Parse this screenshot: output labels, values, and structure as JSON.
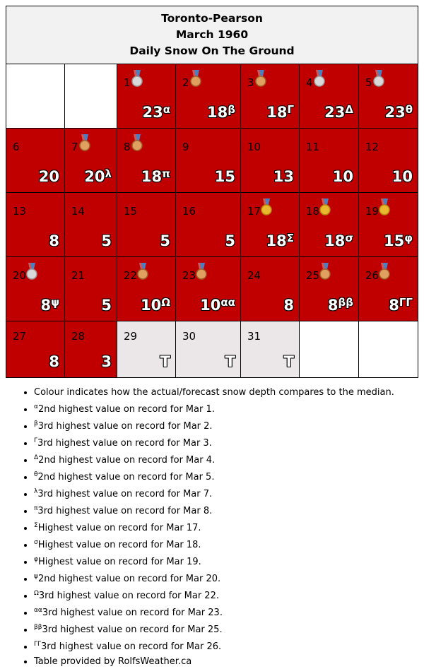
{
  "header": {
    "station": "Toronto-Pearson",
    "period": "March 1960",
    "metric": "Daily Snow On The Ground"
  },
  "colors": {
    "above_median": "#c00000",
    "trace": "#ebe6e8",
    "header_bg": "#f2f2f2"
  },
  "days": [
    {
      "day": "1",
      "value": "23",
      "mark": "α",
      "medal": "silver"
    },
    {
      "day": "2",
      "value": "18",
      "mark": "β",
      "medal": "bronze"
    },
    {
      "day": "3",
      "value": "18",
      "mark": "Γ",
      "medal": "bronze"
    },
    {
      "day": "4",
      "value": "23",
      "mark": "Δ",
      "medal": "silver"
    },
    {
      "day": "5",
      "value": "23",
      "mark": "θ",
      "medal": "silver"
    },
    {
      "day": "6",
      "value": "20",
      "mark": "",
      "medal": ""
    },
    {
      "day": "7",
      "value": "20",
      "mark": "λ",
      "medal": "bronze"
    },
    {
      "day": "8",
      "value": "18",
      "mark": "π",
      "medal": "bronze"
    },
    {
      "day": "9",
      "value": "15",
      "mark": "",
      "medal": ""
    },
    {
      "day": "10",
      "value": "13",
      "mark": "",
      "medal": ""
    },
    {
      "day": "11",
      "value": "10",
      "mark": "",
      "medal": ""
    },
    {
      "day": "12",
      "value": "10",
      "mark": "",
      "medal": ""
    },
    {
      "day": "13",
      "value": "8",
      "mark": "",
      "medal": ""
    },
    {
      "day": "14",
      "value": "5",
      "mark": "",
      "medal": ""
    },
    {
      "day": "15",
      "value": "5",
      "mark": "",
      "medal": ""
    },
    {
      "day": "16",
      "value": "5",
      "mark": "",
      "medal": ""
    },
    {
      "day": "17",
      "value": "18",
      "mark": "Σ",
      "medal": "gold"
    },
    {
      "day": "18",
      "value": "18",
      "mark": "σ",
      "medal": "gold"
    },
    {
      "day": "19",
      "value": "15",
      "mark": "φ",
      "medal": "gold"
    },
    {
      "day": "20",
      "value": "8",
      "mark": "ψ",
      "medal": "silver"
    },
    {
      "day": "21",
      "value": "5",
      "mark": "",
      "medal": ""
    },
    {
      "day": "22",
      "value": "10",
      "mark": "Ω",
      "medal": "bronze"
    },
    {
      "day": "23",
      "value": "10",
      "mark": "αα",
      "medal": "bronze"
    },
    {
      "day": "24",
      "value": "8",
      "mark": "",
      "medal": ""
    },
    {
      "day": "25",
      "value": "8",
      "mark": "ββ",
      "medal": "bronze"
    },
    {
      "day": "26",
      "value": "8",
      "mark": "ΓΓ",
      "medal": "bronze"
    },
    {
      "day": "27",
      "value": "8",
      "mark": "",
      "medal": ""
    },
    {
      "day": "28",
      "value": "3",
      "mark": "",
      "medal": ""
    },
    {
      "day": "29",
      "value": "T",
      "mark": "",
      "medal": ""
    },
    {
      "day": "30",
      "value": "T",
      "mark": "",
      "medal": ""
    },
    {
      "day": "31",
      "value": "T",
      "mark": "",
      "medal": ""
    }
  ],
  "notes": [
    {
      "mark": "",
      "text": "Colour indicates how the actual/forecast snow depth compares to the median."
    },
    {
      "mark": "α",
      "text": "2nd highest value on record for Mar 1."
    },
    {
      "mark": "β",
      "text": "3rd highest value on record for Mar 2."
    },
    {
      "mark": "Γ",
      "text": "3rd highest value on record for Mar 3."
    },
    {
      "mark": "Δ",
      "text": "2nd highest value on record for Mar 4."
    },
    {
      "mark": "θ",
      "text": "2nd highest value on record for Mar 5."
    },
    {
      "mark": "λ",
      "text": "3rd highest value on record for Mar 7."
    },
    {
      "mark": "π",
      "text": "3rd highest value on record for Mar 8."
    },
    {
      "mark": "Σ",
      "text": "Highest value on record for Mar 17."
    },
    {
      "mark": "σ",
      "text": "Highest value on record for Mar 18."
    },
    {
      "mark": "φ",
      "text": "Highest value on record for Mar 19."
    },
    {
      "mark": "ψ",
      "text": "2nd highest value on record for Mar 20."
    },
    {
      "mark": "Ω",
      "text": "3rd highest value on record for Mar 22."
    },
    {
      "mark": "αα",
      "text": "3rd highest value on record for Mar 23."
    },
    {
      "mark": "ββ",
      "text": "3rd highest value on record for Mar 25."
    },
    {
      "mark": "ΓΓ",
      "text": "3rd highest value on record for Mar 26."
    },
    {
      "mark": "",
      "text": "Table provided by RolfsWeather.ca"
    }
  ]
}
